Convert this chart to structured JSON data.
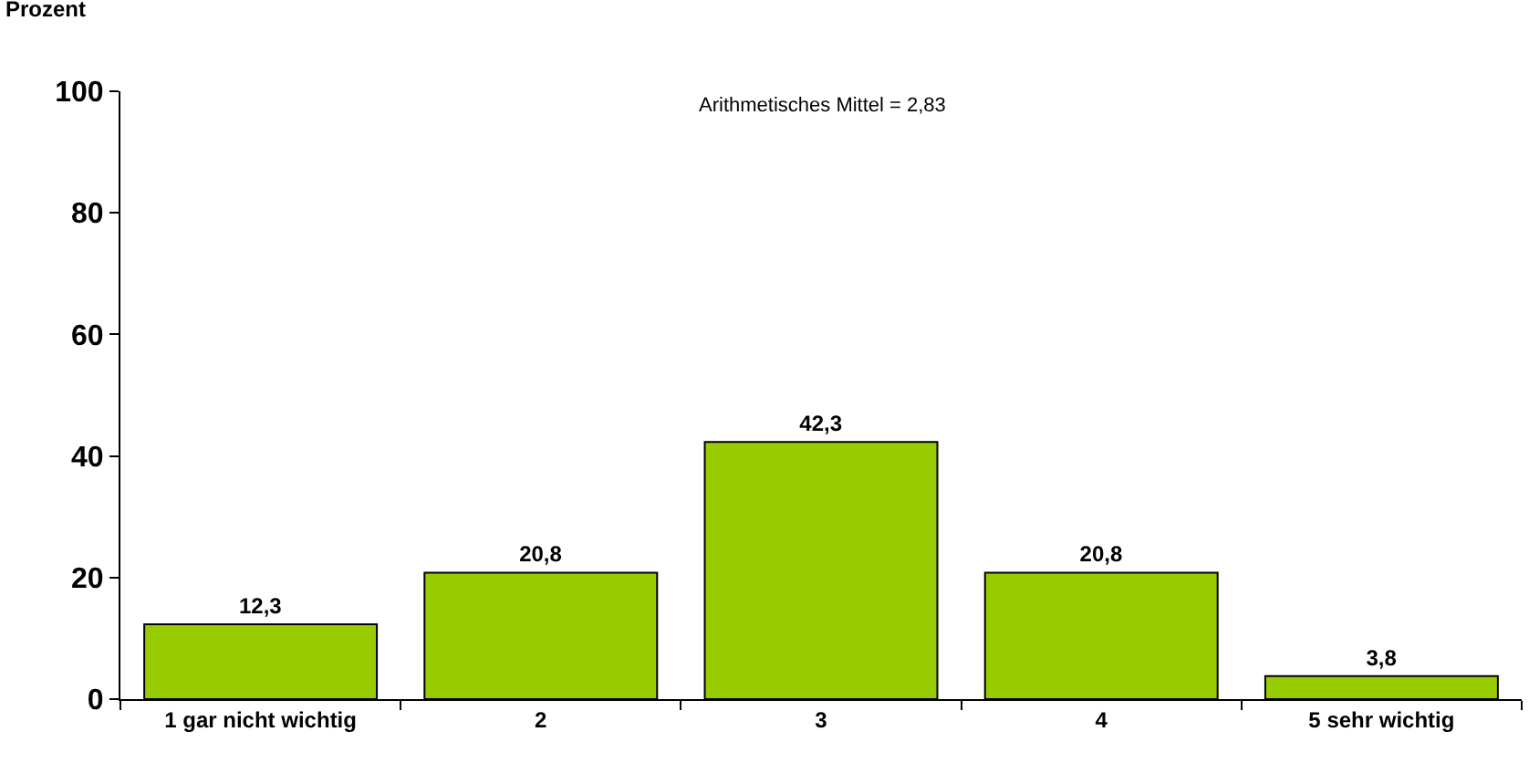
{
  "chart_data": {
    "type": "bar",
    "ylabel": "Prozent",
    "categories": [
      "1 gar nicht wichtig",
      "2",
      "3",
      "4",
      "5 sehr wichtig"
    ],
    "values": [
      12.3,
      20.8,
      42.3,
      20.8,
      3.8
    ],
    "value_labels": [
      "12,3",
      "20,8",
      "42,3",
      "20,8",
      "3,8"
    ],
    "color": "#99cc00",
    "ylim": [
      0,
      100
    ],
    "yticks": [
      0,
      20,
      40,
      60,
      80,
      100
    ],
    "grid": false,
    "legend": false,
    "annotations": [
      "Arithmetisches Mittel = 2,83"
    ]
  }
}
